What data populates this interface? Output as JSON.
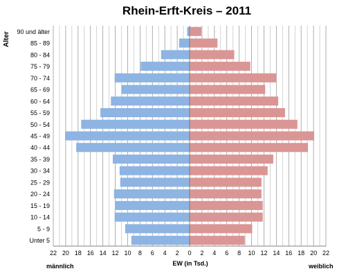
{
  "chart_data": {
    "type": "bar",
    "title": "Rhein-Erft-Kreis – 2011",
    "ylabel": "Alter",
    "xlabel": "EW (in Tsd.)",
    "left_label": "männlich",
    "right_label": "weiblich",
    "categories": [
      "90 und älter",
      "85 - 89",
      "80 - 84",
      "75 - 79",
      "70 - 74",
      "65 - 69",
      "60 - 64",
      "55 - 59",
      "50 - 54",
      "45 - 49",
      "40 - 44",
      "35 - 39",
      "30 - 34",
      "25 - 29",
      "20 - 24",
      "15 - 19",
      "10 - 14",
      "5 - 9",
      "Unter 5"
    ],
    "series": [
      {
        "name": "männlich",
        "color": "#8db4e2",
        "values": [
          0.4,
          1.7,
          4.6,
          7.9,
          12.1,
          11.0,
          12.7,
          14.4,
          17.5,
          20.1,
          18.3,
          12.4,
          11.3,
          11.2,
          12.2,
          12.0,
          12.1,
          10.4,
          9.4
        ]
      },
      {
        "name": "weiblich",
        "color": "#da9694",
        "values": [
          1.9,
          4.5,
          7.2,
          9.8,
          14.0,
          12.2,
          14.3,
          15.4,
          17.4,
          20.1,
          19.1,
          13.5,
          12.6,
          11.6,
          11.6,
          11.8,
          11.8,
          10.1,
          8.9
        ]
      }
    ],
    "xticks": [
      "22",
      "20",
      "18",
      "16",
      "14",
      "12",
      "10",
      "8",
      "6",
      "4",
      "2",
      "0",
      "2",
      "4",
      "6",
      "8",
      "10",
      "12",
      "14",
      "16",
      "18",
      "20",
      "22"
    ],
    "xlim": [
      -22,
      22
    ],
    "grid": true
  }
}
